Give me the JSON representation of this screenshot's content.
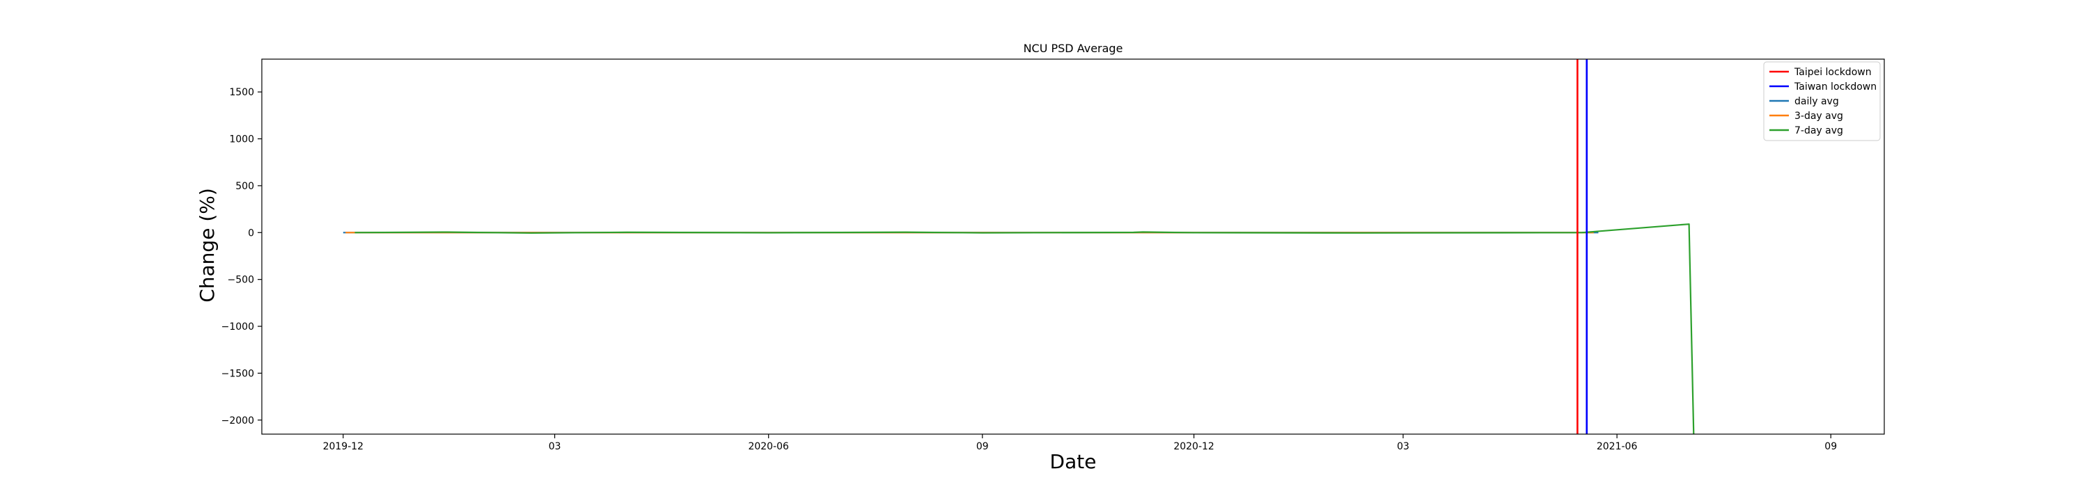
{
  "chart_data": {
    "type": "line",
    "title": "NCU PSD Average",
    "xlabel": "Date",
    "ylabel": "Change (%)",
    "x_axis": {
      "type": "date",
      "range": [
        "2019-10-27",
        "2021-09-24"
      ],
      "ticks": [
        {
          "date": "2019-12-01",
          "label": "2019-12"
        },
        {
          "date": "2020-03-01",
          "label": "03"
        },
        {
          "date": "2020-06-01",
          "label": "2020-06"
        },
        {
          "date": "2020-09-01",
          "label": "09"
        },
        {
          "date": "2020-12-01",
          "label": "2020-12"
        },
        {
          "date": "2021-03-01",
          "label": "03"
        },
        {
          "date": "2021-06-01",
          "label": "2021-06"
        },
        {
          "date": "2021-09-01",
          "label": "09"
        }
      ]
    },
    "y_axis": {
      "range": [
        -2150,
        1850
      ],
      "ticks": [
        {
          "value": 1500,
          "label": "1500"
        },
        {
          "value": 1000,
          "label": "1000"
        },
        {
          "value": 500,
          "label": "500"
        },
        {
          "value": 0,
          "label": "0"
        },
        {
          "value": -500,
          "label": "−500"
        },
        {
          "value": -1000,
          "label": "−1000"
        },
        {
          "value": -1500,
          "label": "−1500"
        },
        {
          "value": -2000,
          "label": "−2000"
        }
      ]
    },
    "grid": false,
    "legend": {
      "placement": "top-right",
      "entries": [
        {
          "label": "Taipei lockdown",
          "color": "#ff0000"
        },
        {
          "label": "Taiwan lockdown",
          "color": "#0000ff"
        },
        {
          "label": "daily avg",
          "color": "#1f77b4"
        },
        {
          "label": "3-day avg",
          "color": "#ff7f0e"
        },
        {
          "label": "7-day avg",
          "color": "#2ca02c"
        }
      ]
    },
    "vlines": [
      {
        "name": "Taipei lockdown",
        "date": "2021-05-15",
        "color": "#ff0000"
      },
      {
        "name": "Taiwan lockdown",
        "date": "2021-05-19",
        "color": "#0000ff"
      }
    ],
    "series": [
      {
        "name": "daily avg",
        "color": "#1f77b4",
        "points": [
          [
            "2019-12-01",
            0
          ],
          [
            "2020-04-01",
            0
          ],
          [
            "2020-09-01",
            0
          ],
          [
            "2021-01-01",
            0
          ],
          [
            "2021-05-24",
            0
          ]
        ]
      },
      {
        "name": "3-day avg",
        "color": "#ff7f0e",
        "points": [
          [
            "2019-12-02",
            0
          ],
          [
            "2020-04-01",
            0
          ],
          [
            "2020-09-01",
            0
          ],
          [
            "2021-01-01",
            0
          ],
          [
            "2021-05-22",
            0
          ]
        ]
      },
      {
        "name": "7-day avg",
        "color": "#2ca02c",
        "points": [
          [
            "2019-12-06",
            0
          ],
          [
            "2020-01-15",
            5
          ],
          [
            "2020-02-20",
            -5
          ],
          [
            "2020-04-01",
            3
          ],
          [
            "2020-06-01",
            -2
          ],
          [
            "2020-07-30",
            4
          ],
          [
            "2020-09-01",
            -3
          ],
          [
            "2020-11-05",
            2
          ],
          [
            "2020-11-09",
            6
          ],
          [
            "2020-12-01",
            -1
          ],
          [
            "2021-02-10",
            -4
          ],
          [
            "2021-05-17",
            0
          ],
          [
            "2021-07-02",
            90
          ],
          [
            "2021-07-04",
            -2150
          ]
        ]
      }
    ]
  }
}
